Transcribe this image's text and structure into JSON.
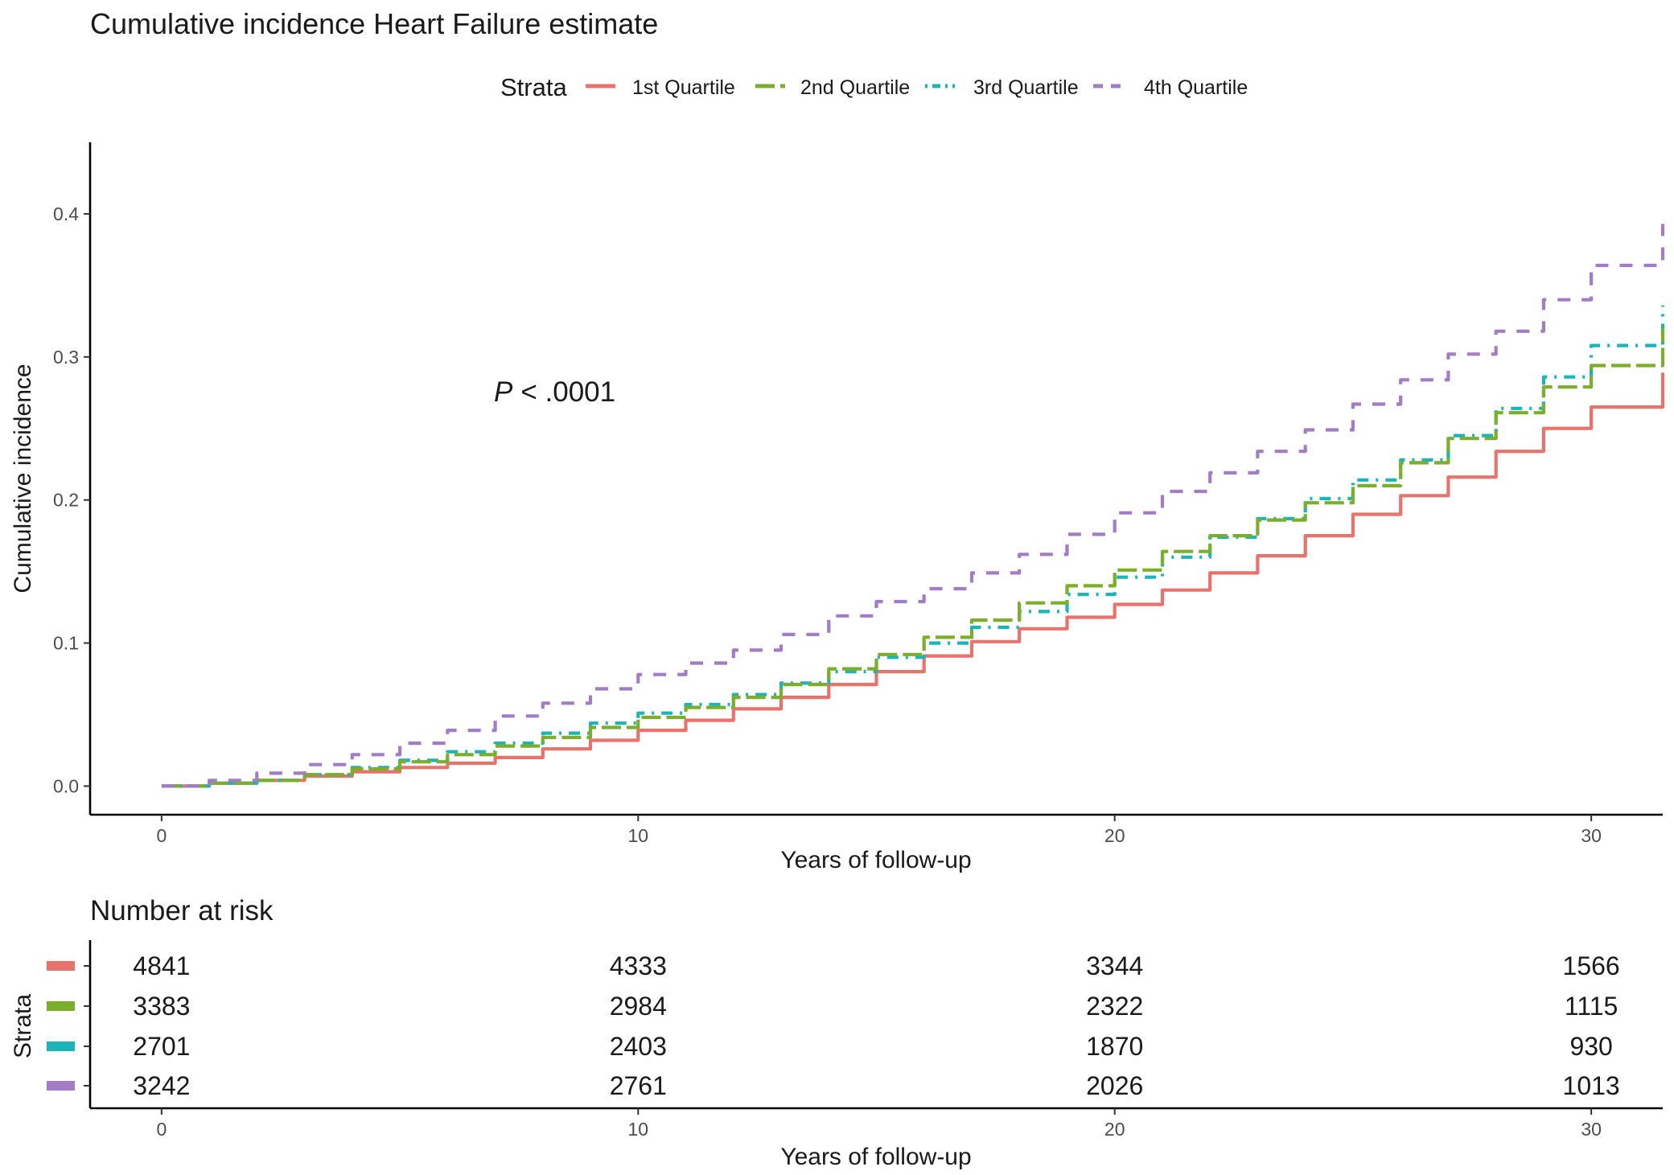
{
  "title": "Cumulative incidence Heart Failure estimate",
  "legend": {
    "title": "Strata",
    "position": "top",
    "items": [
      "1st Quartile",
      "2nd Quartile",
      "3rd Quartile",
      "4th Quartile"
    ]
  },
  "annotation": {
    "p_symbol": "P",
    "p_text": "< .0001"
  },
  "colors": {
    "q1": "#E8736C",
    "q2": "#7CAE2E",
    "q3": "#1DB4B9",
    "q4": "#A27CC4"
  },
  "chart_data": [
    {
      "type": "line",
      "title": "Cumulative incidence Heart Failure estimate",
      "xlabel": "Years of follow-up",
      "ylabel": "Cumulative incidence",
      "xlim": [
        -1.5,
        31.5
      ],
      "ylim": [
        -0.02,
        0.45
      ],
      "xticks": [
        "0",
        "10",
        "20",
        "30"
      ],
      "yticks": [
        "0.0",
        "0.1",
        "0.2",
        "0.3",
        "0.4"
      ],
      "grid": false,
      "legend_position": "top",
      "x": [
        0,
        1,
        2,
        3,
        4,
        5,
        6,
        7,
        8,
        9,
        10,
        11,
        12,
        13,
        14,
        15,
        16,
        17,
        18,
        19,
        20,
        21,
        22,
        23,
        24,
        25,
        26,
        27,
        28,
        29,
        30,
        31.5
      ],
      "series": [
        {
          "name": "1st Quartile",
          "dash": "solid",
          "values": [
            0,
            0.002,
            0.004,
            0.007,
            0.01,
            0.013,
            0.016,
            0.02,
            0.026,
            0.032,
            0.039,
            0.046,
            0.054,
            0.062,
            0.071,
            0.08,
            0.091,
            0.101,
            0.11,
            0.118,
            0.127,
            0.137,
            0.149,
            0.161,
            0.175,
            0.19,
            0.203,
            0.216,
            0.234,
            0.25,
            0.265,
            0.289
          ]
        },
        {
          "name": "2nd Quartile",
          "dash": "longdash",
          "values": [
            0,
            0.002,
            0.004,
            0.008,
            0.012,
            0.017,
            0.022,
            0.028,
            0.034,
            0.041,
            0.048,
            0.055,
            0.062,
            0.071,
            0.082,
            0.092,
            0.104,
            0.116,
            0.128,
            0.14,
            0.151,
            0.164,
            0.175,
            0.186,
            0.198,
            0.21,
            0.226,
            0.243,
            0.261,
            0.279,
            0.294,
            0.32
          ]
        },
        {
          "name": "3rd Quartile",
          "dash": "dotdash",
          "values": [
            0,
            0.002,
            0.004,
            0.008,
            0.013,
            0.018,
            0.024,
            0.03,
            0.037,
            0.044,
            0.051,
            0.057,
            0.064,
            0.072,
            0.08,
            0.09,
            0.1,
            0.111,
            0.122,
            0.134,
            0.146,
            0.16,
            0.174,
            0.187,
            0.201,
            0.214,
            0.228,
            0.245,
            0.264,
            0.286,
            0.308,
            0.336
          ]
        },
        {
          "name": "4th Quartile",
          "dash": "dashed",
          "values": [
            0,
            0.004,
            0.009,
            0.015,
            0.022,
            0.03,
            0.039,
            0.049,
            0.058,
            0.068,
            0.078,
            0.086,
            0.095,
            0.106,
            0.119,
            0.129,
            0.138,
            0.149,
            0.162,
            0.176,
            0.191,
            0.206,
            0.219,
            0.234,
            0.249,
            0.267,
            0.284,
            0.302,
            0.318,
            0.34,
            0.364,
            0.393
          ]
        }
      ]
    },
    {
      "type": "table",
      "title": "Number at risk",
      "xlabel": "Years of follow-up",
      "ylabel": "Strata",
      "xlim": [
        -1.5,
        31.5
      ],
      "xticks": [
        "0",
        "10",
        "20",
        "30"
      ],
      "x": [
        0,
        10,
        20,
        30
      ],
      "rows": [
        {
          "name": "1st Quartile",
          "values": [
            "4841",
            "4333",
            "3344",
            "1566"
          ]
        },
        {
          "name": "2nd Quartile",
          "values": [
            "3383",
            "2984",
            "2322",
            "1115"
          ]
        },
        {
          "name": "3rd Quartile",
          "values": [
            "2701",
            "2403",
            "1870",
            "930"
          ]
        },
        {
          "name": "4th Quartile",
          "values": [
            "3242",
            "2761",
            "2026",
            "1013"
          ]
        }
      ]
    }
  ]
}
